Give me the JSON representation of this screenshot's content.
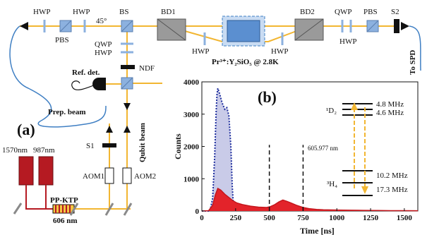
{
  "setup": {
    "labels": {
      "hwp1": "HWP",
      "hwp2": "HWP",
      "pbs1": "PBS",
      "angle": "45°",
      "bs": "BS",
      "bd1": "BD1",
      "bd2": "BD2",
      "qwp_top": "QWP",
      "pbs2": "PBS",
      "s2": "S2",
      "hwp_mid1": "HWP",
      "hwp_mid2": "HWP",
      "hwp_right": "HWP",
      "crystal": "Pr³⁺:Y₂SiO₅ @ 2.8K",
      "qwp_left": "QWP",
      "hwp_left": "HWP",
      "ndf": "NDF",
      "ref_det": "Ref. det.",
      "prep_beam": "Prep. beam",
      "qubit_beam": "Qubit beam",
      "panel_a": "(a)",
      "s1": "S1",
      "aom1": "AOM1",
      "aom2": "AOM2",
      "laser1": "1570nm",
      "laser2": "987nm",
      "ppktp": "PP-KTP",
      "wl606": "606 nm",
      "to_spd": "To SPD"
    },
    "colors": {
      "beam": "#f2b632",
      "fiber": "#3f7fc3",
      "laser": "#b51a22",
      "optic_blue": "#8cb1df",
      "bd_gray": "#9a9a9a"
    }
  },
  "chart_data": {
    "type": "area",
    "panel_label": "(b)",
    "xlabel": "Time [ns]",
    "ylabel": "Counts",
    "xlim": [
      0,
      1600
    ],
    "ylim": [
      0,
      4000
    ],
    "xticks": [
      "0",
      "250",
      "500",
      "750",
      "1000",
      "1250",
      "1500"
    ],
    "yticks": [
      "0",
      "1000",
      "2000",
      "3000",
      "4000"
    ],
    "series": [
      {
        "style": "dotted-outline",
        "color": "#1f2f9e",
        "fill": "#c9cbe8",
        "points": [
          [
            0,
            0
          ],
          [
            60,
            0
          ],
          [
            80,
            400
          ],
          [
            95,
            1700
          ],
          [
            105,
            3000
          ],
          [
            112,
            3600
          ],
          [
            118,
            3800
          ],
          [
            130,
            3650
          ],
          [
            150,
            3350
          ],
          [
            170,
            3150
          ],
          [
            185,
            3200
          ],
          [
            200,
            2950
          ],
          [
            215,
            2000
          ],
          [
            225,
            800
          ],
          [
            235,
            100
          ],
          [
            250,
            0
          ]
        ]
      },
      {
        "style": "solid-area",
        "color": "#c4161c",
        "fill": "#e3232a",
        "points": [
          [
            0,
            0
          ],
          [
            50,
            10
          ],
          [
            80,
            180
          ],
          [
            100,
            500
          ],
          [
            118,
            700
          ],
          [
            140,
            650
          ],
          [
            170,
            520
          ],
          [
            200,
            420
          ],
          [
            230,
            320
          ],
          [
            260,
            250
          ],
          [
            300,
            200
          ],
          [
            360,
            150
          ],
          [
            420,
            120
          ],
          [
            480,
            110
          ],
          [
            510,
            140
          ],
          [
            540,
            200
          ],
          [
            570,
            280
          ],
          [
            600,
            340
          ],
          [
            630,
            300
          ],
          [
            660,
            250
          ],
          [
            700,
            180
          ],
          [
            750,
            110
          ],
          [
            800,
            70
          ],
          [
            850,
            50
          ],
          [
            900,
            40
          ],
          [
            1000,
            30
          ],
          [
            1100,
            25
          ],
          [
            1200,
            20
          ],
          [
            1300,
            15
          ],
          [
            1400,
            12
          ],
          [
            1500,
            10
          ],
          [
            1600,
            8
          ]
        ]
      }
    ],
    "dashed_lines_x": [
      500,
      750
    ],
    "level_diagram": {
      "upper_state": "¹D₂",
      "lower_state": "³H₄",
      "upper_splittings": [
        "4.8 MHz",
        "4.6 MHz"
      ],
      "lower_splittings": [
        "10.2 MHz",
        "17.3 MHz"
      ],
      "transition": "605.977 nm"
    }
  }
}
